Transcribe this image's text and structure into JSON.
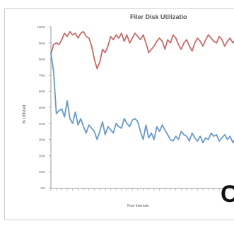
{
  "chart_data": {
    "type": "line",
    "title": "Filer Disk Utilizatio",
    "xlabel": "Time Intervals",
    "ylabel": "% Utilized",
    "ylim": [
      0,
      100
    ],
    "yticks": [
      "100%",
      "90%",
      "80%",
      "70%",
      "60%",
      "50%",
      "40%",
      "30%",
      "20%",
      "10%",
      "0%"
    ],
    "grid": false,
    "legend": "none",
    "colors": {
      "series_top": "#c86b6b",
      "series_bottom": "#6a9ac8",
      "axis": "#999999",
      "text": "#555555"
    },
    "x": [
      0,
      1,
      2,
      3,
      4,
      5,
      6,
      7,
      8,
      9,
      10,
      11,
      12,
      13,
      14,
      15,
      16,
      17,
      18,
      19,
      20,
      21,
      22,
      23,
      24,
      25,
      26,
      27,
      28,
      29,
      30,
      31,
      32,
      33,
      34,
      35,
      36,
      37,
      38,
      39,
      40,
      41,
      42,
      43,
      44,
      45,
      46,
      47,
      48,
      49,
      50,
      51,
      52,
      53,
      54,
      55,
      56,
      57,
      58,
      59,
      60,
      61,
      62,
      63,
      64,
      65,
      66,
      67,
      68,
      69
    ],
    "series": [
      {
        "values": [
          83,
          89,
          90,
          89,
          92,
          96,
          94,
          97,
          95,
          96,
          93,
          96,
          97,
          94,
          93,
          88,
          80,
          74,
          78,
          86,
          84,
          88,
          94,
          92,
          95,
          93,
          96,
          91,
          95,
          90,
          93,
          96,
          94,
          92,
          95,
          90,
          84,
          86,
          88,
          91,
          93,
          91,
          86,
          92,
          90,
          95,
          93,
          89,
          86,
          90,
          92,
          88,
          85,
          90,
          93,
          91,
          88,
          92,
          95,
          93,
          91,
          90,
          94,
          92,
          88,
          91,
          93,
          90,
          92,
          94
        ]
      },
      {
        "values": [
          84,
          72,
          46,
          48,
          49,
          44,
          54,
          43,
          40,
          47,
          39,
          43,
          38,
          34,
          39,
          37,
          35,
          30,
          35,
          41,
          33,
          38,
          36,
          34,
          40,
          38,
          37,
          43,
          40,
          38,
          42,
          43,
          41,
          35,
          30,
          39,
          31,
          34,
          30,
          38,
          35,
          39,
          36,
          33,
          30,
          29,
          32,
          30,
          35,
          33,
          32,
          29,
          34,
          31,
          29,
          32,
          28,
          31,
          30,
          34,
          32,
          33,
          29,
          31,
          33,
          30,
          32,
          28,
          31,
          30
        ]
      }
    ]
  },
  "corner_letter": "C"
}
